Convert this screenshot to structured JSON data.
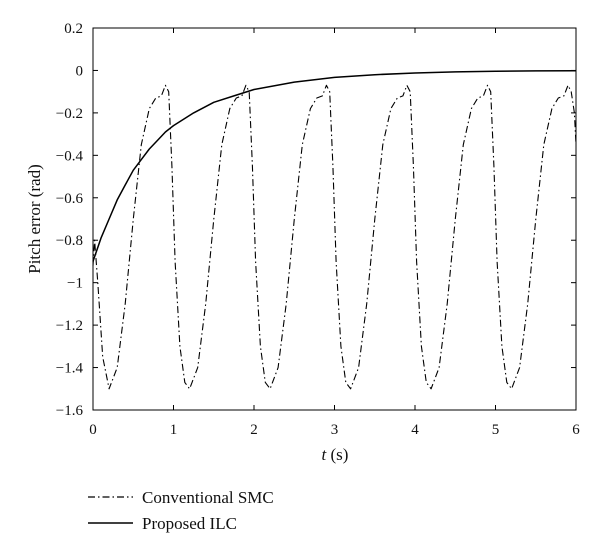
{
  "chart_data": {
    "type": "line",
    "xlabel_italic": "t",
    "xlabel_unit": " (s)",
    "ylabel": "Pitch error (rad)",
    "xlim": [
      0,
      6
    ],
    "ylim": [
      -1.6,
      0.2
    ],
    "xticks": [
      0,
      1,
      2,
      3,
      4,
      5,
      6
    ],
    "yticks": [
      0.2,
      0,
      -0.2,
      -0.4,
      -0.6,
      -0.8,
      -1,
      -1.2,
      -1.4,
      -1.6
    ],
    "ytick_labels": [
      "0.2",
      "0",
      "−0.2",
      "−0.4",
      "−0.6",
      "−0.8",
      "−1",
      "−1.2",
      "−1.4",
      "−1.6"
    ],
    "grid": false,
    "legend_position": "below-left",
    "series": [
      {
        "name": "Conventional SMC",
        "style": "dash-dot",
        "color": "#000000",
        "x": [
          0,
          0.02,
          0.06,
          0.12,
          0.2,
          0.3,
          0.4,
          0.5,
          0.6,
          0.7,
          0.78,
          0.85,
          0.9,
          0.94,
          0.98,
          1.02,
          1.08,
          1.14,
          1.2,
          1.3,
          1.4,
          1.5,
          1.6,
          1.7,
          1.78,
          1.85,
          1.9,
          1.94,
          1.98,
          2.02,
          2.08,
          2.14,
          2.2,
          2.3,
          2.4,
          2.5,
          2.6,
          2.7,
          2.78,
          2.85,
          2.9,
          2.94,
          2.98,
          3.02,
          3.08,
          3.14,
          3.2,
          3.3,
          3.4,
          3.5,
          3.6,
          3.7,
          3.78,
          3.85,
          3.9,
          3.94,
          3.98,
          4.02,
          4.08,
          4.14,
          4.2,
          4.3,
          4.4,
          4.5,
          4.6,
          4.7,
          4.78,
          4.85,
          4.9,
          4.94,
          4.98,
          5.02,
          5.08,
          5.14,
          5.2,
          5.3,
          5.4,
          5.5,
          5.6,
          5.7,
          5.78,
          5.85,
          5.9,
          5.94,
          5.98,
          6.0
        ],
        "y": [
          -0.92,
          -0.8,
          -1.0,
          -1.35,
          -1.5,
          -1.4,
          -1.1,
          -0.7,
          -0.35,
          -0.18,
          -0.13,
          -0.12,
          -0.07,
          -0.1,
          -0.45,
          -0.9,
          -1.3,
          -1.47,
          -1.5,
          -1.4,
          -1.1,
          -0.7,
          -0.35,
          -0.18,
          -0.13,
          -0.12,
          -0.07,
          -0.1,
          -0.45,
          -0.9,
          -1.3,
          -1.47,
          -1.5,
          -1.4,
          -1.1,
          -0.7,
          -0.35,
          -0.18,
          -0.13,
          -0.12,
          -0.07,
          -0.1,
          -0.45,
          -0.9,
          -1.3,
          -1.47,
          -1.5,
          -1.4,
          -1.1,
          -0.7,
          -0.35,
          -0.18,
          -0.13,
          -0.12,
          -0.07,
          -0.1,
          -0.45,
          -0.9,
          -1.3,
          -1.47,
          -1.5,
          -1.4,
          -1.1,
          -0.7,
          -0.35,
          -0.18,
          -0.13,
          -0.12,
          -0.07,
          -0.1,
          -0.45,
          -0.9,
          -1.3,
          -1.47,
          -1.5,
          -1.4,
          -1.1,
          -0.7,
          -0.35,
          -0.18,
          -0.13,
          -0.12,
          -0.07,
          -0.1,
          -0.2,
          -0.35
        ]
      },
      {
        "name": "Proposed ILC",
        "style": "solid",
        "color": "#000000",
        "x": [
          0,
          0.1,
          0.2,
          0.3,
          0.4,
          0.5,
          0.6,
          0.7,
          0.8,
          0.9,
          1.0,
          1.25,
          1.5,
          1.75,
          2.0,
          2.5,
          3.0,
          3.5,
          4.0,
          4.5,
          5.0,
          5.5,
          6.0
        ],
        "y": [
          -0.9,
          -0.79,
          -0.7,
          -0.61,
          -0.54,
          -0.47,
          -0.42,
          -0.37,
          -0.33,
          -0.29,
          -0.26,
          -0.2,
          -0.15,
          -0.12,
          -0.09,
          -0.055,
          -0.033,
          -0.02,
          -0.012,
          -0.007,
          -0.004,
          -0.002,
          -0.001
        ]
      }
    ]
  }
}
